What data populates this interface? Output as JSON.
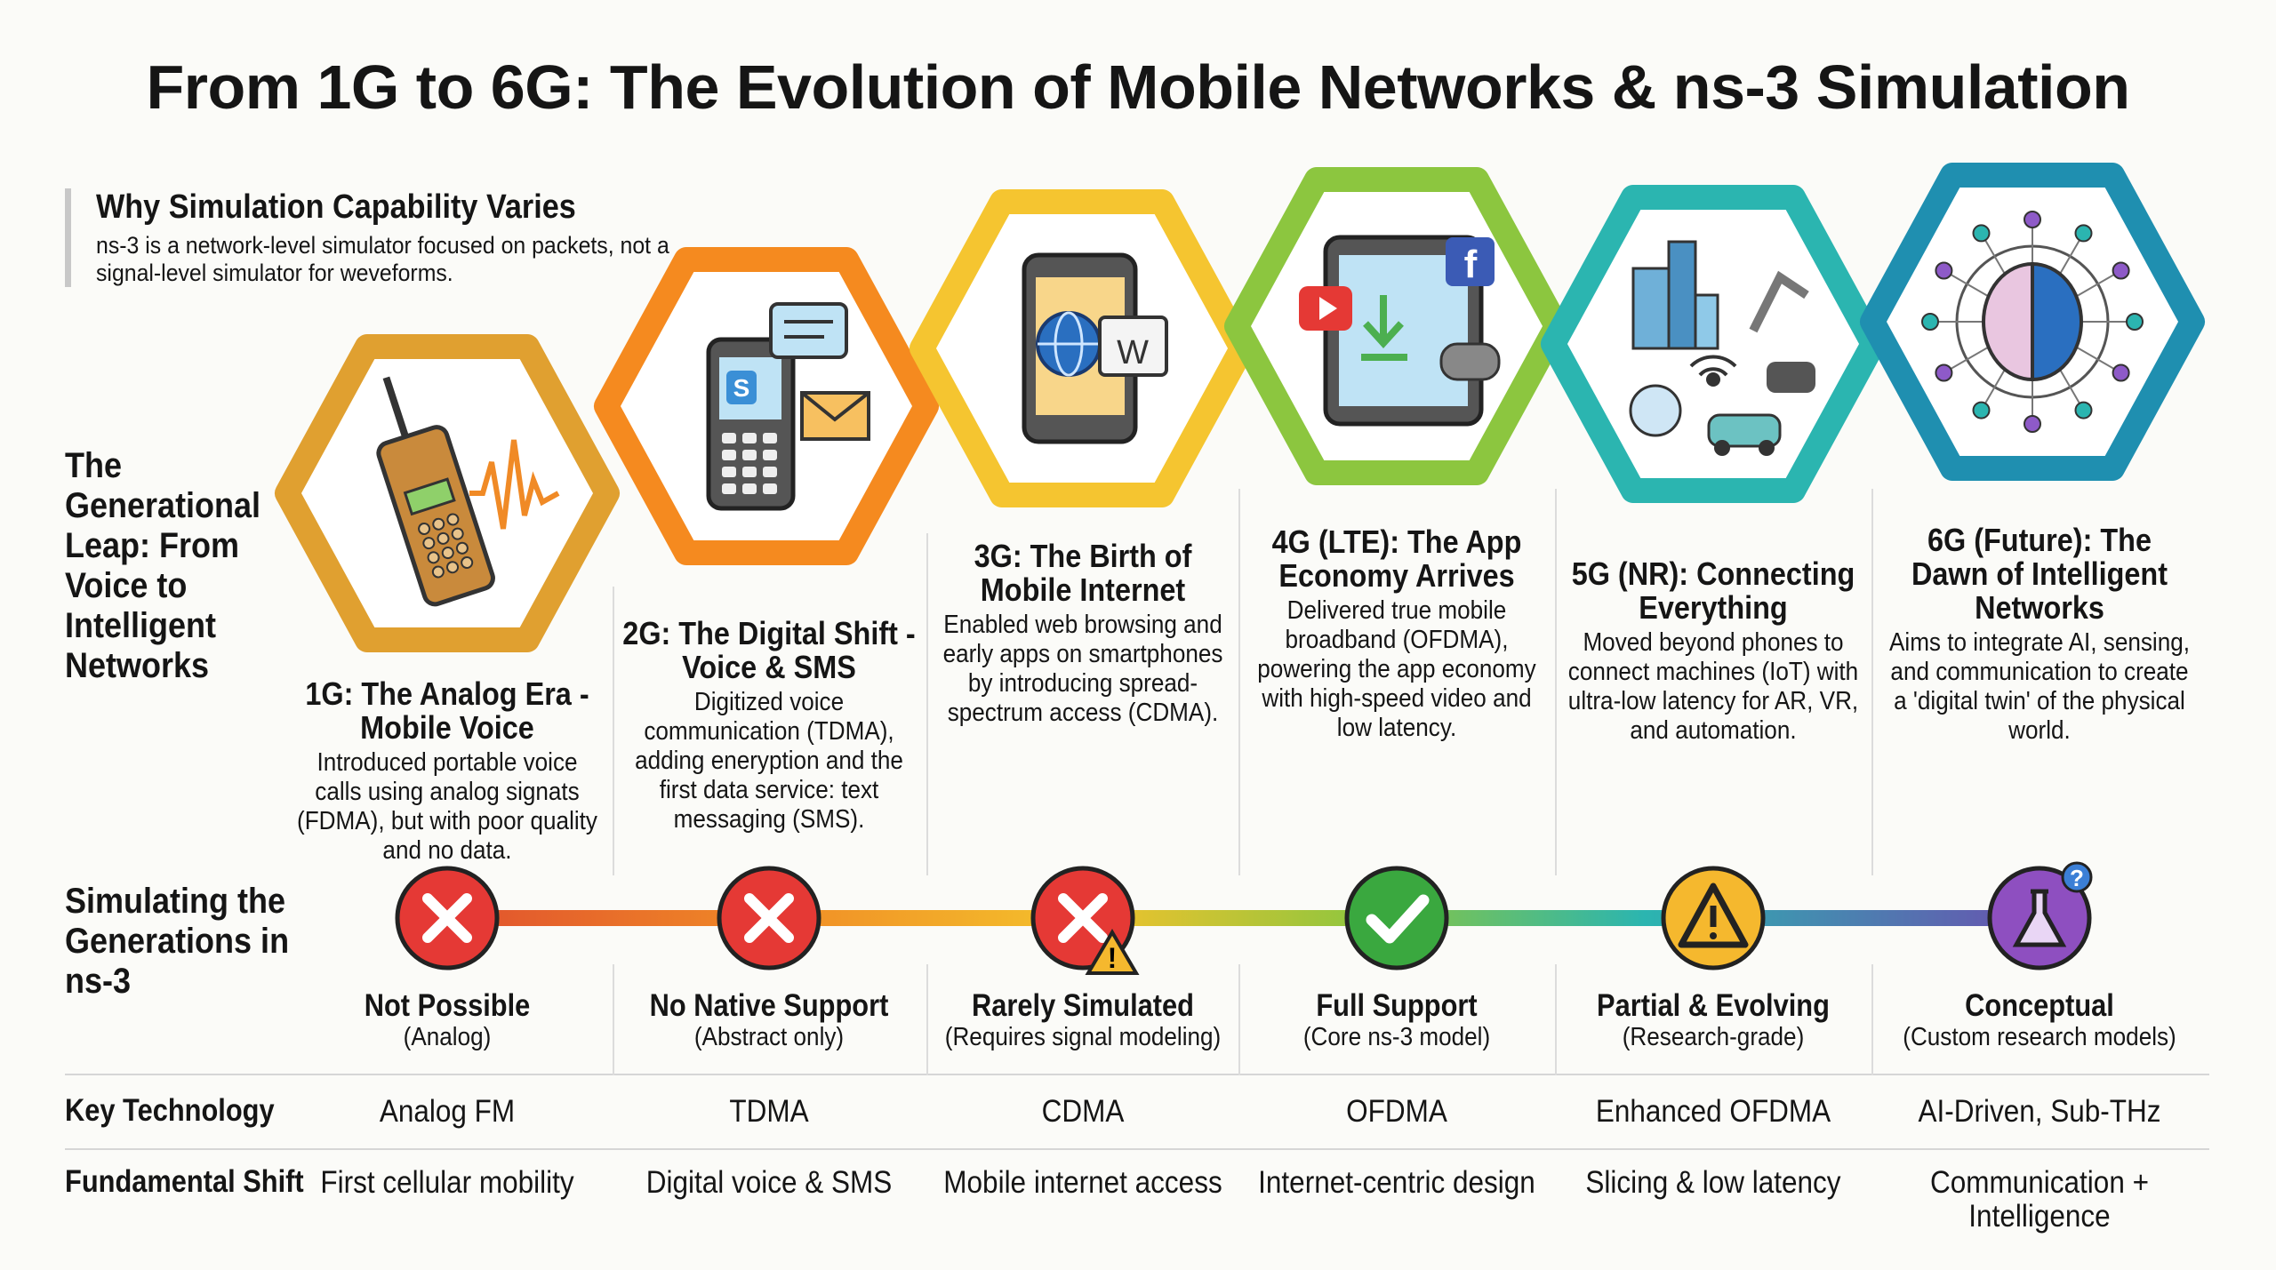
{
  "title": "From 1G to 6G: The Evolution of Mobile Networks & ns-3 Simulation",
  "why": {
    "title": "Why Simulation Capability Varies",
    "body": "ns-3 is a network-level simulator focused on packets, not a signal-level simulator for weveforms."
  },
  "leap_label": "The Generational Leap: From Voice to Intelligent Networks",
  "sim_label": "Simulating the Generations in ns-3",
  "table": {
    "row1_label": "Key Technology",
    "row2_label": "Fundamental Shift"
  },
  "colors": {
    "1G": "#e0a030",
    "2G": "#f58a1f",
    "3G": "#f5c530",
    "4G": "#8cc63f",
    "5G": "#2bb5b0",
    "6G": "#1f8fb0"
  },
  "generations": [
    {
      "id": "1G",
      "icon": "brick-phone-waveform-icon",
      "heading": "1G: The Analog Era - Mobile Voice",
      "body": "Introduced portable voice calls using analog signats (FDMA), but with poor quality and no data.",
      "status": "Not Possible",
      "status_sub": "(Analog)",
      "status_icon": "x-circle-icon",
      "technology": "Analog FM",
      "shift": "First cellular mobility"
    },
    {
      "id": "2G",
      "icon": "feature-phone-sms-icon",
      "heading": "2G: The Digital Shift - Voice & SMS",
      "body": "Digitized voice communication (TDMA), adding eneryption and the first data service: text messaging (SMS).",
      "status": "No Native Support",
      "status_sub": "(Abstract only)",
      "status_icon": "x-circle-icon",
      "technology": "TDMA",
      "shift": "Digital voice & SMS"
    },
    {
      "id": "3G",
      "icon": "smartphone-web-icon",
      "heading": "3G: The Birth of Mobile Internet",
      "body": "Enabled web browsing and early apps on smartphones by introducing spread-spectrum access (CDMA).",
      "status": "Rarely Simulated",
      "status_sub": "(Requires signal modeling)",
      "status_icon": "x-circle-warning-icon",
      "technology": "CDMA",
      "shift": "Mobile internet access"
    },
    {
      "id": "4G",
      "icon": "tablet-apps-icon",
      "heading": "4G (LTE): The App Economy Arrives",
      "body": "Delivered true mobile broadband (OFDMA), powering the app economy with high-speed video and low latency.",
      "status": "Full Support",
      "status_sub": "(Core ns-3 model)",
      "status_icon": "check-circle-icon",
      "technology": "OFDMA",
      "shift": "Internet-centric design"
    },
    {
      "id": "5G",
      "icon": "iot-network-icon",
      "heading": "5G (NR): Connecting Everything",
      "body": "Moved beyond phones to connect machines (IoT) with ultra-low latency for AR, VR, and automation.",
      "status": "Partial & Evolving",
      "status_sub": "(Research-grade)",
      "status_icon": "warning-circle-icon",
      "technology": "Enhanced OFDMA",
      "shift": "Slicing & low latency"
    },
    {
      "id": "6G",
      "icon": "ai-brain-globe-icon",
      "heading": "6G (Future): The Dawn of Intelligent Networks",
      "body": "Aims to integrate AI, sensing, and communication to create a 'digital twin' of the physical world.",
      "status": "Conceptual",
      "status_sub": "(Custom research models)",
      "status_icon": "flask-question-icon",
      "technology": "AI-Driven, Sub-THz",
      "shift": "Communication + Intelligence"
    }
  ]
}
